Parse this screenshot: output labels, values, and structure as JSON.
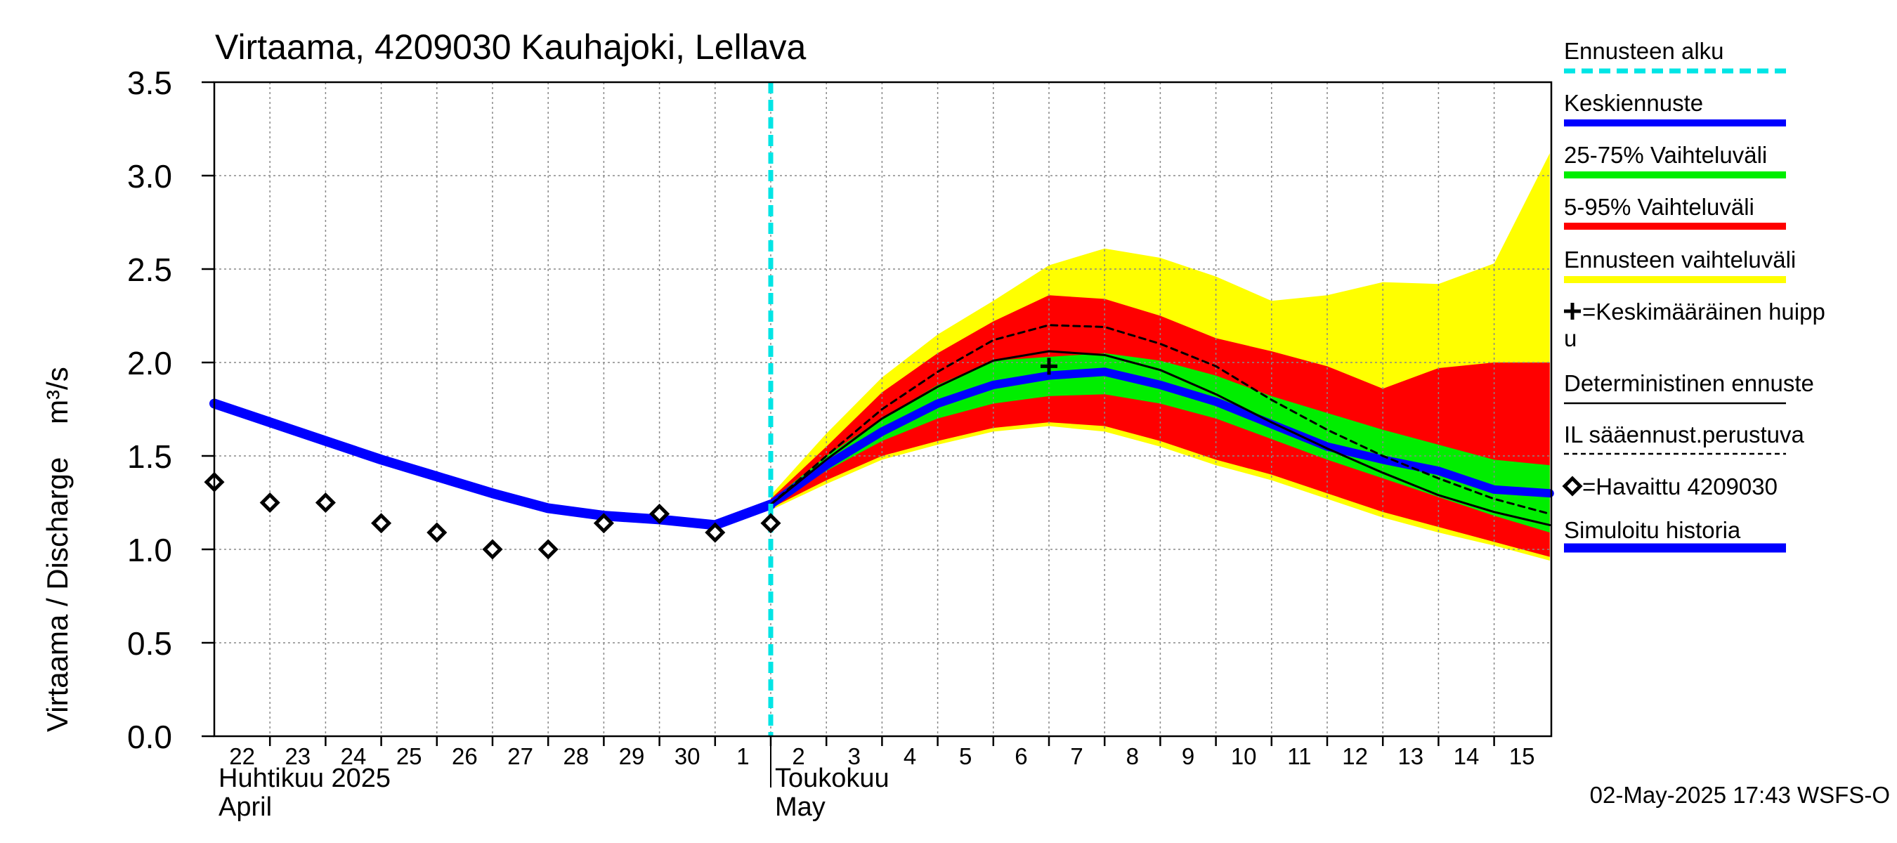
{
  "title": "Virtaama, 4209030 Kauhajoki, Lellava",
  "ylabel": "Virtaama / Discharge    m³/s",
  "footer": "02-May-2025 17:43 WSFS-O",
  "month_labels": [
    {
      "fi": "Huhtikuu  2025",
      "en": "April",
      "start_day": 0
    },
    {
      "fi": "Toukokuu",
      "en": "May",
      "start_day": 10
    }
  ],
  "legend": [
    {
      "label": "Ennusteen alku",
      "style": "dashed-cyan"
    },
    {
      "label": "Keskiennuste",
      "style": "blue-line"
    },
    {
      "label": "25-75% Vaihteluväli",
      "style": "green-line"
    },
    {
      "label": "5-95% Vaihteluväli",
      "style": "red-line"
    },
    {
      "label": "Ennusteen vaihteluväli",
      "style": "yellow-line"
    },
    {
      "label": "=Keskimääräinen huipp",
      "label2": "u",
      "style": "plus-marker"
    },
    {
      "label": "Deterministinen ennuste",
      "style": "black-line"
    },
    {
      "label": "IL sääennust.perustuva",
      "style": "black-dashed"
    },
    {
      "label": "=Havaittu 4209030",
      "style": "diamond-marker"
    },
    {
      "label": "Simuloitu historia",
      "style": "blue-thick"
    }
  ],
  "colors": {
    "cyan": "#00e5e5",
    "blue": "#0000ff",
    "green": "#00ee00",
    "red": "#ff0000",
    "yellow": "#ffff00",
    "black": "#000000",
    "grid": "#888888"
  },
  "chart_data": {
    "type": "line",
    "title": "Virtaama, 4209030 Kauhajoki, Lellava",
    "ylabel": "Virtaama / Discharge    m³/s",
    "ylim": [
      0,
      3.5
    ],
    "yticks": [
      "0.0",
      "0.5",
      "1.0",
      "1.5",
      "2.0",
      "2.5",
      "3.0",
      "3.5"
    ],
    "x_day_labels": [
      "22",
      "23",
      "24",
      "25",
      "26",
      "27",
      "28",
      "29",
      "30",
      "1",
      "2",
      "3",
      "4",
      "5",
      "6",
      "7",
      "8",
      "9",
      "10",
      "11",
      "12",
      "13",
      "14",
      "15"
    ],
    "forecast_start_day": 10,
    "simulated_history": {
      "x": [
        0,
        1,
        2,
        3,
        4,
        5,
        6,
        7,
        8,
        9,
        10
      ],
      "y": [
        1.78,
        1.68,
        1.58,
        1.48,
        1.39,
        1.3,
        1.22,
        1.18,
        1.16,
        1.13,
        1.24
      ]
    },
    "observed": {
      "x": [
        0,
        1,
        2,
        3,
        4,
        5,
        6,
        7,
        8,
        9,
        10
      ],
      "y": [
        1.36,
        1.25,
        1.25,
        1.14,
        1.09,
        1.0,
        1.0,
        1.14,
        1.19,
        1.09,
        1.14
      ]
    },
    "forecast_x": [
      10,
      11,
      12,
      13,
      14,
      15,
      16,
      17,
      18,
      19,
      20,
      21,
      22,
      23,
      24
    ],
    "median_forecast": [
      1.24,
      1.45,
      1.63,
      1.78,
      1.88,
      1.93,
      1.95,
      1.88,
      1.79,
      1.67,
      1.55,
      1.48,
      1.42,
      1.32,
      1.3
    ],
    "range_25_75": {
      "low": [
        1.23,
        1.42,
        1.58,
        1.7,
        1.78,
        1.82,
        1.83,
        1.78,
        1.7,
        1.59,
        1.48,
        1.38,
        1.28,
        1.18,
        1.09
      ],
      "high": [
        1.26,
        1.5,
        1.7,
        1.88,
        2.01,
        2.03,
        2.05,
        2.01,
        1.93,
        1.82,
        1.73,
        1.64,
        1.56,
        1.48,
        1.45
      ]
    },
    "range_5_95": {
      "low": [
        1.22,
        1.37,
        1.5,
        1.58,
        1.65,
        1.68,
        1.66,
        1.58,
        1.48,
        1.4,
        1.3,
        1.2,
        1.12,
        1.04,
        0.96
      ],
      "high": [
        1.27,
        1.55,
        1.84,
        2.05,
        2.22,
        2.36,
        2.34,
        2.25,
        2.13,
        2.06,
        1.98,
        1.86,
        1.97,
        2.0,
        2.0
      ]
    },
    "forecast_range": {
      "low": [
        1.21,
        1.35,
        1.48,
        1.56,
        1.63,
        1.66,
        1.63,
        1.55,
        1.45,
        1.37,
        1.27,
        1.17,
        1.09,
        1.02,
        0.94
      ],
      "high": [
        1.29,
        1.62,
        1.92,
        2.15,
        2.33,
        2.52,
        2.61,
        2.56,
        2.46,
        2.33,
        2.36,
        2.43,
        2.42,
        2.53,
        3.12
      ]
    },
    "deterministic": [
      1.24,
      1.48,
      1.7,
      1.87,
      2.01,
      2.06,
      2.04,
      1.96,
      1.83,
      1.68,
      1.54,
      1.41,
      1.29,
      1.2,
      1.13
    ],
    "il_weather_forecast": [
      1.24,
      1.5,
      1.75,
      1.95,
      2.12,
      2.2,
      2.19,
      2.1,
      1.98,
      1.8,
      1.64,
      1.5,
      1.38,
      1.27,
      1.19
    ],
    "mean_peak": {
      "x": 15,
      "y": 1.98
    }
  }
}
